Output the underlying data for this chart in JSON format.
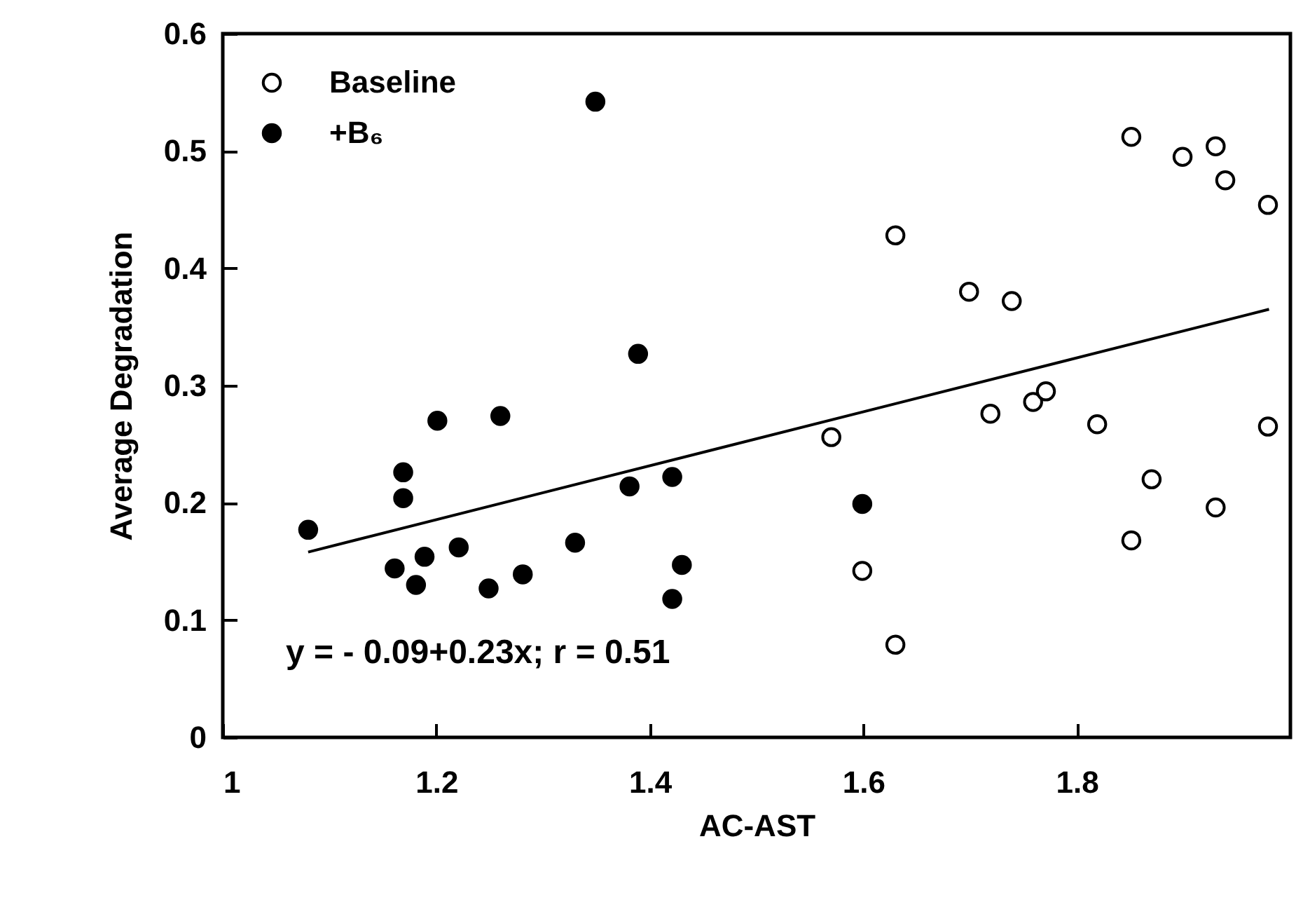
{
  "chart_data": {
    "type": "scatter",
    "xlabel": "AC-AST",
    "ylabel": "Average Degradation",
    "xlim": [
      1,
      2
    ],
    "xticks": [
      1,
      1.2,
      1.4,
      1.6,
      1.8
    ],
    "ylim": [
      0,
      0.6
    ],
    "yticks": [
      0,
      0.1,
      0.2,
      0.3,
      0.4,
      0.5,
      0.6
    ],
    "grid": false,
    "legend": "top left",
    "marker": "circle",
    "annotations": [
      "y  = - 0.09+0.23x;  r = 0.51"
    ],
    "series": [
      {
        "name": "Baseline",
        "color": "#ffffff",
        "x": [
          1.851,
          1.899,
          1.93,
          1.939,
          1.979,
          1.63,
          1.699,
          1.739,
          1.57,
          1.719,
          1.759,
          1.771,
          1.819,
          1.979,
          1.87,
          1.93,
          1.851,
          1.599,
          1.63
        ],
        "values": [
          0.512,
          0.495,
          0.504,
          0.475,
          0.454,
          0.428,
          0.38,
          0.372,
          0.256,
          0.276,
          0.286,
          0.295,
          0.267,
          0.265,
          0.22,
          0.196,
          0.168,
          0.142,
          0.079
        ]
      },
      {
        "name": "+B₆",
        "color": "#000000",
        "x": [
          1.08,
          1.201,
          1.26,
          1.169,
          1.169,
          1.161,
          1.181,
          1.189,
          1.221,
          1.249,
          1.281,
          1.33,
          1.381,
          1.421,
          1.43,
          1.421,
          1.349,
          1.389,
          1.599
        ],
        "values": [
          0.177,
          0.27,
          0.274,
          0.226,
          0.204,
          0.144,
          0.13,
          0.154,
          0.162,
          0.127,
          0.139,
          0.166,
          0.214,
          0.222,
          0.147,
          0.118,
          0.542,
          0.327,
          0.199
        ]
      },
      {
        "type": "line",
        "color": "#000000",
        "marker": "none",
        "x": [
          1.08,
          1.98
        ],
        "values": [
          0.158,
          0.365
        ]
      }
    ]
  }
}
